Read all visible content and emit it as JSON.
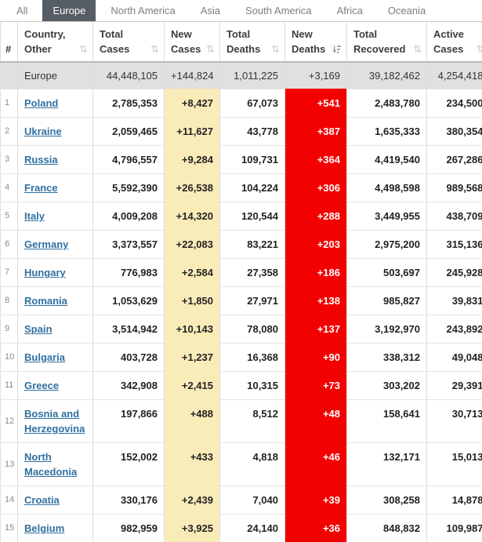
{
  "tabs": [
    {
      "label": "All",
      "active": false
    },
    {
      "label": "Europe",
      "active": true
    },
    {
      "label": "North America",
      "active": false
    },
    {
      "label": "Asia",
      "active": false
    },
    {
      "label": "South America",
      "active": false
    },
    {
      "label": "Africa",
      "active": false
    },
    {
      "label": "Oceania",
      "active": false
    }
  ],
  "colors": {
    "active_tab_bg": "#565d64",
    "new_cases_highlight": "#faecb9",
    "new_deaths_highlight": "#f30000",
    "summary_row_bg": "#e0e0e0",
    "country_link": "#3070a0"
  },
  "table": {
    "columns": [
      {
        "id": "index",
        "key": "index",
        "label_lines": [
          "",
          "#"
        ],
        "sort_icon": "none"
      },
      {
        "id": "country",
        "key": "country",
        "label_lines": [
          "Country,",
          "Other"
        ],
        "sort_icon": "unsorted"
      },
      {
        "id": "total-cases",
        "key": "total_cases",
        "label_lines": [
          "Total",
          "Cases"
        ],
        "sort_icon": "unsorted"
      },
      {
        "id": "new-cases",
        "key": "new_cases",
        "label_lines": [
          "New",
          "Cases"
        ],
        "sort_icon": "unsorted"
      },
      {
        "id": "total-deaths",
        "key": "total_deaths",
        "label_lines": [
          "Total",
          "Deaths"
        ],
        "sort_icon": "unsorted"
      },
      {
        "id": "new-deaths",
        "key": "new_deaths",
        "label_lines": [
          "New",
          "Deaths"
        ],
        "sort_icon": "sorted-desc"
      },
      {
        "id": "total-recovered",
        "key": "total_recovered",
        "label_lines": [
          "Total",
          "Recovered"
        ],
        "sort_icon": "unsorted"
      },
      {
        "id": "active-cases",
        "key": "active_cases",
        "label_lines": [
          "Active",
          "Cases"
        ],
        "sort_icon": "unsorted"
      }
    ],
    "summary_row": {
      "index": "",
      "country": "Europe",
      "total_cases": "44,448,105",
      "new_cases": "+144,824",
      "total_deaths": "1,011,225",
      "new_deaths": "+3,169",
      "total_recovered": "39,182,462",
      "active_cases": "4,254,418"
    },
    "rows": [
      {
        "index": "1",
        "country": "Poland",
        "total_cases": "2,785,353",
        "new_cases": "+8,427",
        "total_deaths": "67,073",
        "new_deaths": "+541",
        "total_recovered": "2,483,780",
        "active_cases": "234,500"
      },
      {
        "index": "2",
        "country": "Ukraine",
        "total_cases": "2,059,465",
        "new_cases": "+11,627",
        "total_deaths": "43,778",
        "new_deaths": "+387",
        "total_recovered": "1,635,333",
        "active_cases": "380,354"
      },
      {
        "index": "3",
        "country": "Russia",
        "total_cases": "4,796,557",
        "new_cases": "+9,284",
        "total_deaths": "109,731",
        "new_deaths": "+364",
        "total_recovered": "4,419,540",
        "active_cases": "267,286"
      },
      {
        "index": "4",
        "country": "France",
        "total_cases": "5,592,390",
        "new_cases": "+26,538",
        "total_deaths": "104,224",
        "new_deaths": "+306",
        "total_recovered": "4,498,598",
        "active_cases": "989,568"
      },
      {
        "index": "5",
        "country": "Italy",
        "total_cases": "4,009,208",
        "new_cases": "+14,320",
        "total_deaths": "120,544",
        "new_deaths": "+288",
        "total_recovered": "3,449,955",
        "active_cases": "438,709"
      },
      {
        "index": "6",
        "country": "Germany",
        "total_cases": "3,373,557",
        "new_cases": "+22,083",
        "total_deaths": "83,221",
        "new_deaths": "+203",
        "total_recovered": "2,975,200",
        "active_cases": "315,136"
      },
      {
        "index": "7",
        "country": "Hungary",
        "total_cases": "776,983",
        "new_cases": "+2,584",
        "total_deaths": "27,358",
        "new_deaths": "+186",
        "total_recovered": "503,697",
        "active_cases": "245,928"
      },
      {
        "index": "8",
        "country": "Romania",
        "total_cases": "1,053,629",
        "new_cases": "+1,850",
        "total_deaths": "27,971",
        "new_deaths": "+138",
        "total_recovered": "985,827",
        "active_cases": "39,831"
      },
      {
        "index": "9",
        "country": "Spain",
        "total_cases": "3,514,942",
        "new_cases": "+10,143",
        "total_deaths": "78,080",
        "new_deaths": "+137",
        "total_recovered": "3,192,970",
        "active_cases": "243,892"
      },
      {
        "index": "10",
        "country": "Bulgaria",
        "total_cases": "403,728",
        "new_cases": "+1,237",
        "total_deaths": "16,368",
        "new_deaths": "+90",
        "total_recovered": "338,312",
        "active_cases": "49,048"
      },
      {
        "index": "11",
        "country": "Greece",
        "total_cases": "342,908",
        "new_cases": "+2,415",
        "total_deaths": "10,315",
        "new_deaths": "+73",
        "total_recovered": "303,202",
        "active_cases": "29,391"
      },
      {
        "index": "12",
        "country": "Bosnia and Herzegovina",
        "total_cases": "197,866",
        "new_cases": "+488",
        "total_deaths": "8,512",
        "new_deaths": "+48",
        "total_recovered": "158,641",
        "active_cases": "30,713"
      },
      {
        "index": "13",
        "country": "North Macedonia",
        "total_cases": "152,002",
        "new_cases": "+433",
        "total_deaths": "4,818",
        "new_deaths": "+46",
        "total_recovered": "132,171",
        "active_cases": "15,013"
      },
      {
        "index": "14",
        "country": "Croatia",
        "total_cases": "330,176",
        "new_cases": "+2,439",
        "total_deaths": "7,040",
        "new_deaths": "+39",
        "total_recovered": "308,258",
        "active_cases": "14,878"
      },
      {
        "index": "15",
        "country": "Belgium",
        "total_cases": "982,959",
        "new_cases": "+3,925",
        "total_deaths": "24,140",
        "new_deaths": "+36",
        "total_recovered": "848,832",
        "active_cases": "109,987"
      }
    ]
  }
}
